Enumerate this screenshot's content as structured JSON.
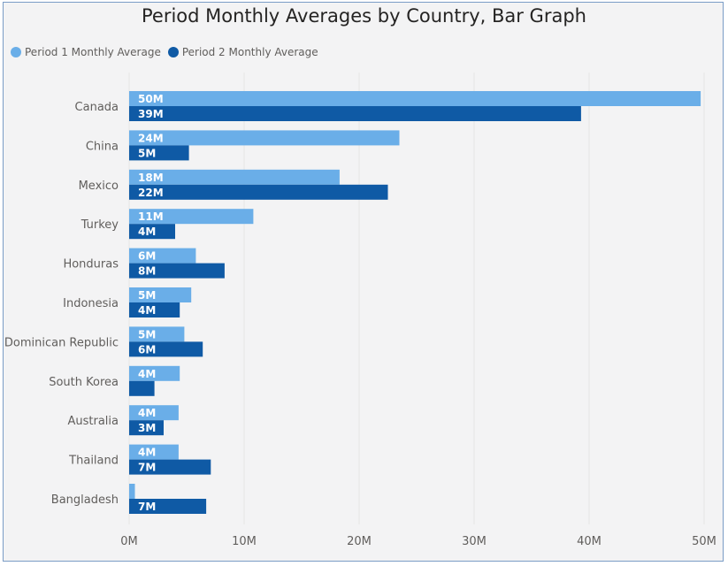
{
  "chart_data": {
    "type": "bar",
    "orientation": "horizontal",
    "title": "Period Monthly Averages by Country, Bar Graph",
    "categories": [
      "Canada",
      "China",
      "Mexico",
      "Turkey",
      "Honduras",
      "Indonesia",
      "Dominican Republic",
      "South Korea",
      "Australia",
      "Thailand",
      "Bangladesh"
    ],
    "series": [
      {
        "name": "Period 1 Monthly Average",
        "color": "#6aaee8",
        "values": [
          49.7,
          23.5,
          18.3,
          10.8,
          5.8,
          5.4,
          4.8,
          4.4,
          4.3,
          4.3,
          0.5
        ],
        "labels": [
          "50M",
          "24M",
          "18M",
          "11M",
          "6M",
          "5M",
          "5M",
          "4M",
          "4M",
          "4M",
          ""
        ]
      },
      {
        "name": "Period 2 Monthly Average",
        "color": "#0f5aa5",
        "values": [
          39.3,
          5.2,
          22.5,
          4.0,
          8.3,
          4.4,
          6.4,
          2.2,
          3.0,
          7.1,
          6.7
        ],
        "labels": [
          "39M",
          "5M",
          "22M",
          "4M",
          "8M",
          "4M",
          "6M",
          "",
          "3M",
          "7M",
          "7M"
        ]
      }
    ],
    "x_ticks": [
      0,
      10,
      20,
      30,
      40,
      50
    ],
    "x_tick_labels": [
      "0M",
      "10M",
      "20M",
      "30M",
      "40M",
      "50M"
    ],
    "xlim": [
      0,
      50
    ],
    "grid": true,
    "legend_position": "top-left"
  }
}
